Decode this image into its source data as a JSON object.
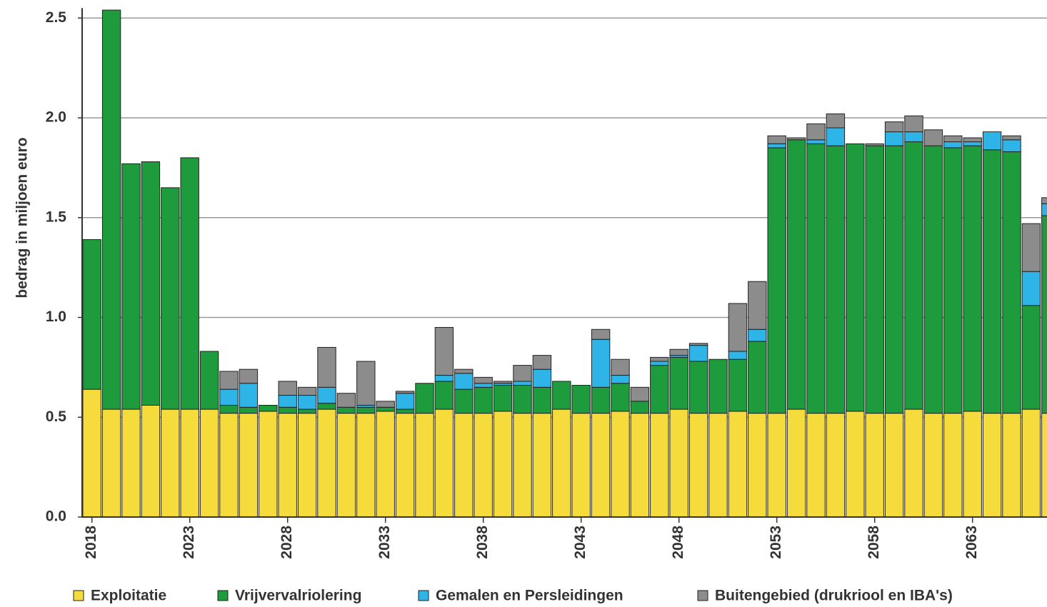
{
  "chart_data": {
    "type": "stacked-bar",
    "y_label": "bedrag in miljoen euro",
    "categories": [
      "2018",
      null,
      null,
      null,
      null,
      "2023",
      null,
      null,
      null,
      null,
      "2028",
      null,
      null,
      null,
      null,
      "2033",
      null,
      null,
      null,
      null,
      "2038",
      null,
      null,
      null,
      null,
      "2043",
      null,
      null,
      null,
      null,
      "2048",
      null,
      null,
      null,
      null,
      "2053",
      null,
      null,
      null,
      null,
      "2058",
      null,
      null,
      null,
      null,
      "2063",
      null,
      null,
      null,
      null
    ],
    "series": [
      {
        "name": "Exploitatie",
        "color": "#f5dc3c",
        "values": [
          0.64,
          0.54,
          0.54,
          0.56,
          0.54,
          0.54,
          0.54,
          0.52,
          0.52,
          0.53,
          0.52,
          0.52,
          0.54,
          0.52,
          0.52,
          0.53,
          0.52,
          0.52,
          0.54,
          0.52,
          0.52,
          0.53,
          0.52,
          0.52,
          0.54,
          0.52,
          0.52,
          0.53,
          0.52,
          0.52,
          0.54,
          0.52,
          0.52,
          0.53,
          0.52,
          0.52,
          0.54,
          0.52,
          0.52,
          0.53,
          0.52,
          0.52,
          0.54,
          0.52,
          0.52,
          0.53,
          0.52,
          0.52,
          0.54,
          0.52
        ]
      },
      {
        "name": "Vrijvervalriolering",
        "color": "#1e9b3c",
        "values": [
          0.75,
          2.0,
          1.23,
          1.22,
          1.11,
          1.26,
          0.29,
          0.04,
          0.03,
          0.03,
          0.03,
          0.02,
          0.03,
          0.03,
          0.03,
          0.02,
          0.02,
          0.15,
          0.14,
          0.12,
          0.13,
          0.13,
          0.14,
          0.13,
          0.14,
          0.14,
          0.13,
          0.14,
          0.06,
          0.24,
          0.26,
          0.26,
          0.27,
          0.26,
          0.36,
          1.33,
          1.35,
          1.35,
          1.34,
          1.34,
          1.34,
          1.34,
          1.34,
          1.34,
          1.33,
          1.33,
          1.32,
          1.31,
          0.52,
          0.99
        ]
      },
      {
        "name": "Gemalen en Persleidingen",
        "color": "#2fb4e8",
        "values": [
          0,
          0,
          0,
          0,
          0,
          0,
          0,
          0.08,
          0.12,
          0,
          0.06,
          0.07,
          0.08,
          0,
          0.01,
          0,
          0.08,
          0,
          0.03,
          0.08,
          0.02,
          0.01,
          0.02,
          0.09,
          0,
          0,
          0.24,
          0.04,
          0,
          0.02,
          0.01,
          0.08,
          0,
          0.04,
          0.06,
          0.02,
          0,
          0.02,
          0.09,
          0,
          0,
          0.07,
          0.05,
          0,
          0.03,
          0.02,
          0.09,
          0.06,
          0.17,
          0.06
        ]
      },
      {
        "name": "Buitengebied (drukriool en IBA's)",
        "color": "#8c8c8c",
        "values": [
          0,
          0,
          0,
          0,
          0,
          0,
          0,
          0.09,
          0.07,
          0,
          0.07,
          0.04,
          0.2,
          0.07,
          0.22,
          0.03,
          0.01,
          0,
          0.24,
          0.02,
          0.03,
          0.01,
          0.08,
          0.07,
          0,
          0,
          0.05,
          0.08,
          0.07,
          0.02,
          0.03,
          0.01,
          0,
          0.24,
          0.24,
          0.04,
          0.01,
          0.08,
          0.07,
          0,
          0.01,
          0.05,
          0.08,
          0.08,
          0.03,
          0.02,
          0,
          0.02,
          0.24,
          0.03
        ]
      }
    ],
    "ylim": [
      0,
      2.55
    ],
    "yticks": [
      {
        "value": 0,
        "label": "0.0"
      },
      0.5,
      {
        "value": 1,
        "label": "1.0"
      },
      1.5,
      {
        "value": 2,
        "label": "2.0"
      },
      2.5
    ],
    "grid": true
  }
}
